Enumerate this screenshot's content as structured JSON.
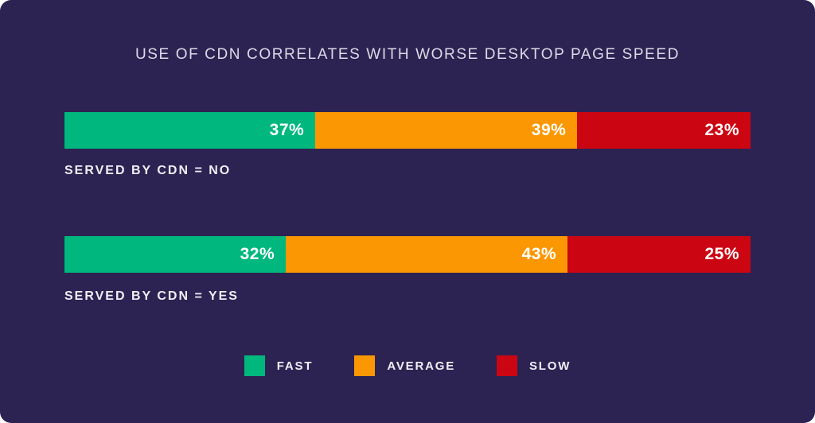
{
  "card": {
    "background_color": "#2D2352"
  },
  "chart_data": {
    "type": "bar",
    "subtype": "horizontal-stacked",
    "title": "USE OF CDN CORRELATES WITH WORSE DESKTOP PAGE SPEED",
    "categories": [
      "SERVED BY CDN = NO",
      "SERVED BY CDN = YES"
    ],
    "series": [
      {
        "name": "FAST",
        "color": "#00B77D",
        "values": [
          37,
          32
        ]
      },
      {
        "name": "AVERAGE",
        "color": "#FB9702",
        "values": [
          39,
          43
        ]
      },
      {
        "name": "SLOW",
        "color": "#CC0512",
        "values": [
          23,
          25
        ]
      }
    ],
    "value_format": "percent",
    "legend_position": "bottom",
    "grid": false,
    "axis_labels_shown": false
  },
  "title": "USE OF CDN CORRELATES WITH WORSE DESKTOP PAGE SPEED",
  "rows": [
    {
      "label": "SERVED BY CDN = NO",
      "segments": [
        {
          "series": "FAST",
          "value": 37,
          "label": "37%",
          "color": "#00B77D"
        },
        {
          "series": "AVERAGE",
          "value": 39,
          "label": "39%",
          "color": "#FB9702"
        },
        {
          "series": "SLOW",
          "value": 23,
          "label": "23%",
          "color": "#CC0512"
        }
      ]
    },
    {
      "label": "SERVED BY CDN = YES",
      "segments": [
        {
          "series": "FAST",
          "value": 32,
          "label": "32%",
          "color": "#00B77D"
        },
        {
          "series": "AVERAGE",
          "value": 43,
          "label": "43%",
          "color": "#FB9702"
        },
        {
          "series": "SLOW",
          "value": 25,
          "label": "25%",
          "color": "#CC0512"
        }
      ]
    }
  ],
  "legend": {
    "items": [
      {
        "label": "FAST",
        "color": "#00B77D"
      },
      {
        "label": "AVERAGE",
        "color": "#FB9702"
      },
      {
        "label": "SLOW",
        "color": "#CC0512"
      }
    ]
  }
}
